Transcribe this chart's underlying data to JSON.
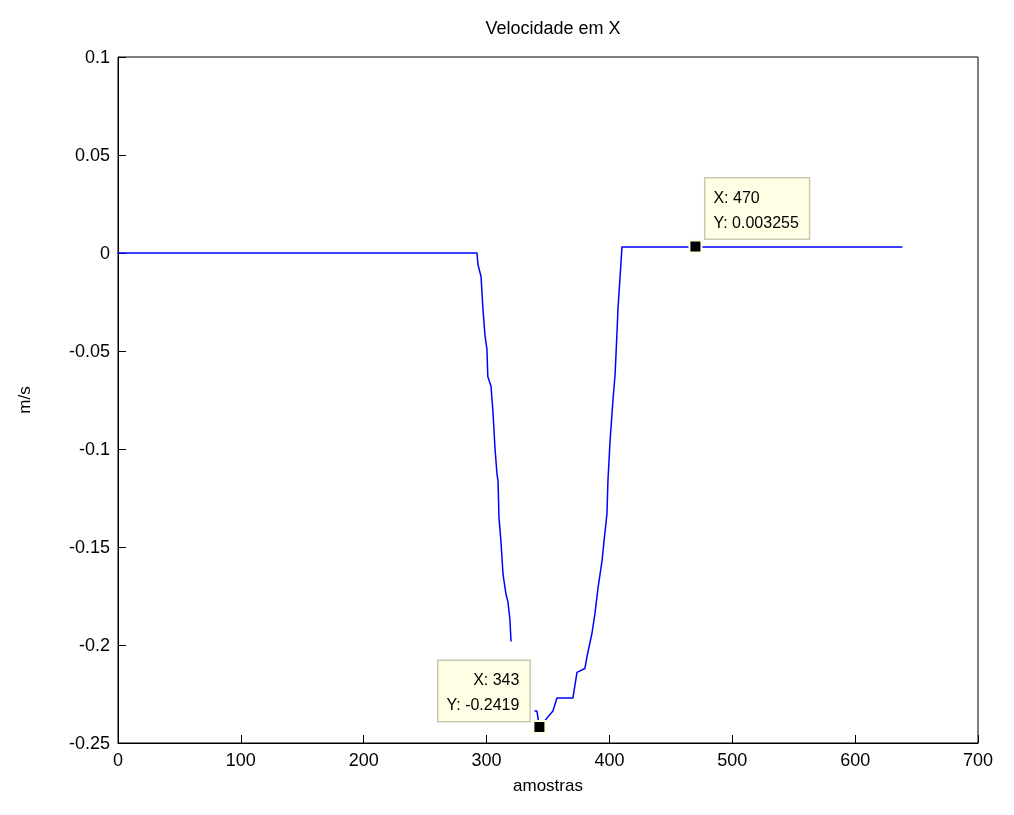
{
  "chart_data": {
    "type": "line",
    "title": "Velocidade em X",
    "xlabel": "amostras",
    "ylabel": "m/s",
    "x": [
      0,
      100,
      200,
      292.2,
      293,
      295.5,
      297,
      298.7,
      300.3,
      301,
      303.6,
      305.2,
      306.9,
      308.5,
      309.3,
      310.1,
      311.7,
      313.4,
      315.8,
      317.4,
      319,
      319.9,
      330,
      339.4,
      341,
      343,
      354,
      357.3,
      370.3,
      373.6,
      380,
      381.7,
      385.8,
      388.2,
      390.7,
      394,
      395.6,
      398,
      398.8,
      400.5,
      403,
      404.6,
      406.2,
      407,
      409.4,
      410.2,
      470,
      550,
      638
    ],
    "series": [
      {
        "color": "#0000ff",
        "values": [
          0,
          0,
          0,
          0,
          -0.006,
          -0.012,
          -0.028,
          -0.042,
          -0.049,
          -0.063,
          -0.068,
          -0.081,
          -0.1,
          -0.113,
          -0.116,
          -0.135,
          -0.147,
          -0.164,
          -0.174,
          -0.178,
          -0.187,
          -0.198,
          null,
          -0.2337,
          -0.2337,
          -0.2419,
          -0.2337,
          -0.227,
          -0.227,
          -0.214,
          -0.212,
          -0.206,
          -0.194,
          -0.184,
          -0.171,
          -0.157,
          -0.147,
          -0.133,
          -0.116,
          -0.096,
          -0.074,
          -0.062,
          -0.04,
          -0.028,
          -0.005,
          0.003,
          0.003,
          0.003,
          0.003
        ]
      }
    ],
    "xlim": [
      0,
      700
    ],
    "xticks": [
      0,
      100,
      200,
      300,
      400,
      500,
      600,
      700
    ],
    "ylim": [
      -0.25,
      0.1
    ],
    "yticks": [
      -0.25,
      -0.2,
      -0.15,
      -0.1,
      -0.05,
      0,
      0.05,
      0.1
    ],
    "marker": "none",
    "line_style": "solid",
    "annotations": [
      {
        "text": "X: 343\nY: -0.2419",
        "x": 343,
        "y": -0.2419
      },
      {
        "text": "X: 470\nY: 0.003255",
        "x": 470,
        "y": 0.003255
      }
    ]
  }
}
